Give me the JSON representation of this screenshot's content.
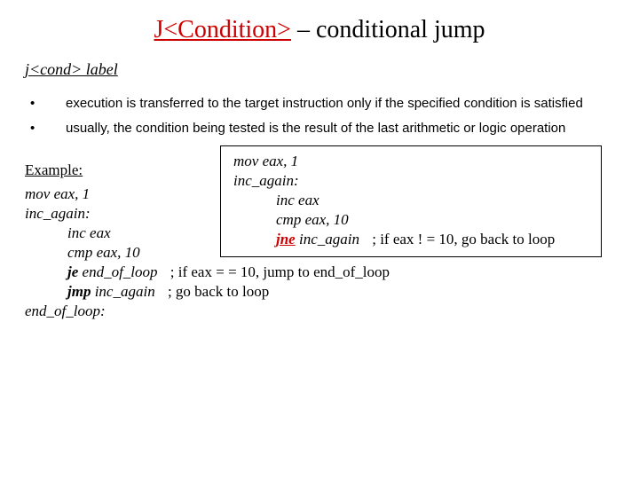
{
  "colors": {
    "accent_red": "#cc0000",
    "link_blue": "#0000cc",
    "text": "#000000",
    "bg": "#ffffff"
  },
  "title": {
    "prefix": "J<Condition>",
    "suffix": " – conditional jump"
  },
  "syntax": "j<cond> label",
  "bullets": [
    "execution is transferred to the target instruction only if the specified condition is satisfied",
    "usually, the condition being tested is the result of the last arithmetic or logic operation"
  ],
  "example": {
    "label": "Example:",
    "left": {
      "l1": "mov eax, 1",
      "l2": "inc_again:",
      "l3": "inc eax",
      "l4": "cmp eax, 10",
      "l5_instr": "je",
      "l5_rest": " end_of_loop",
      "l5_comment": "  ; if eax = = 10, jump to end_of_loop",
      "l6_instr": "jmp",
      "l6_rest": " inc_again",
      "l6_comment": "   ; go back to loop",
      "l7": "end_of_loop:"
    },
    "box": {
      "l1": "mov eax, 1",
      "l2": "inc_again:",
      "l3": "inc eax",
      "l4": "cmp eax, 10",
      "l5_instr": "jne",
      "l5_rest": " inc_again",
      "l5_comment": "    ; if eax ! = 10, go back to loop"
    }
  }
}
